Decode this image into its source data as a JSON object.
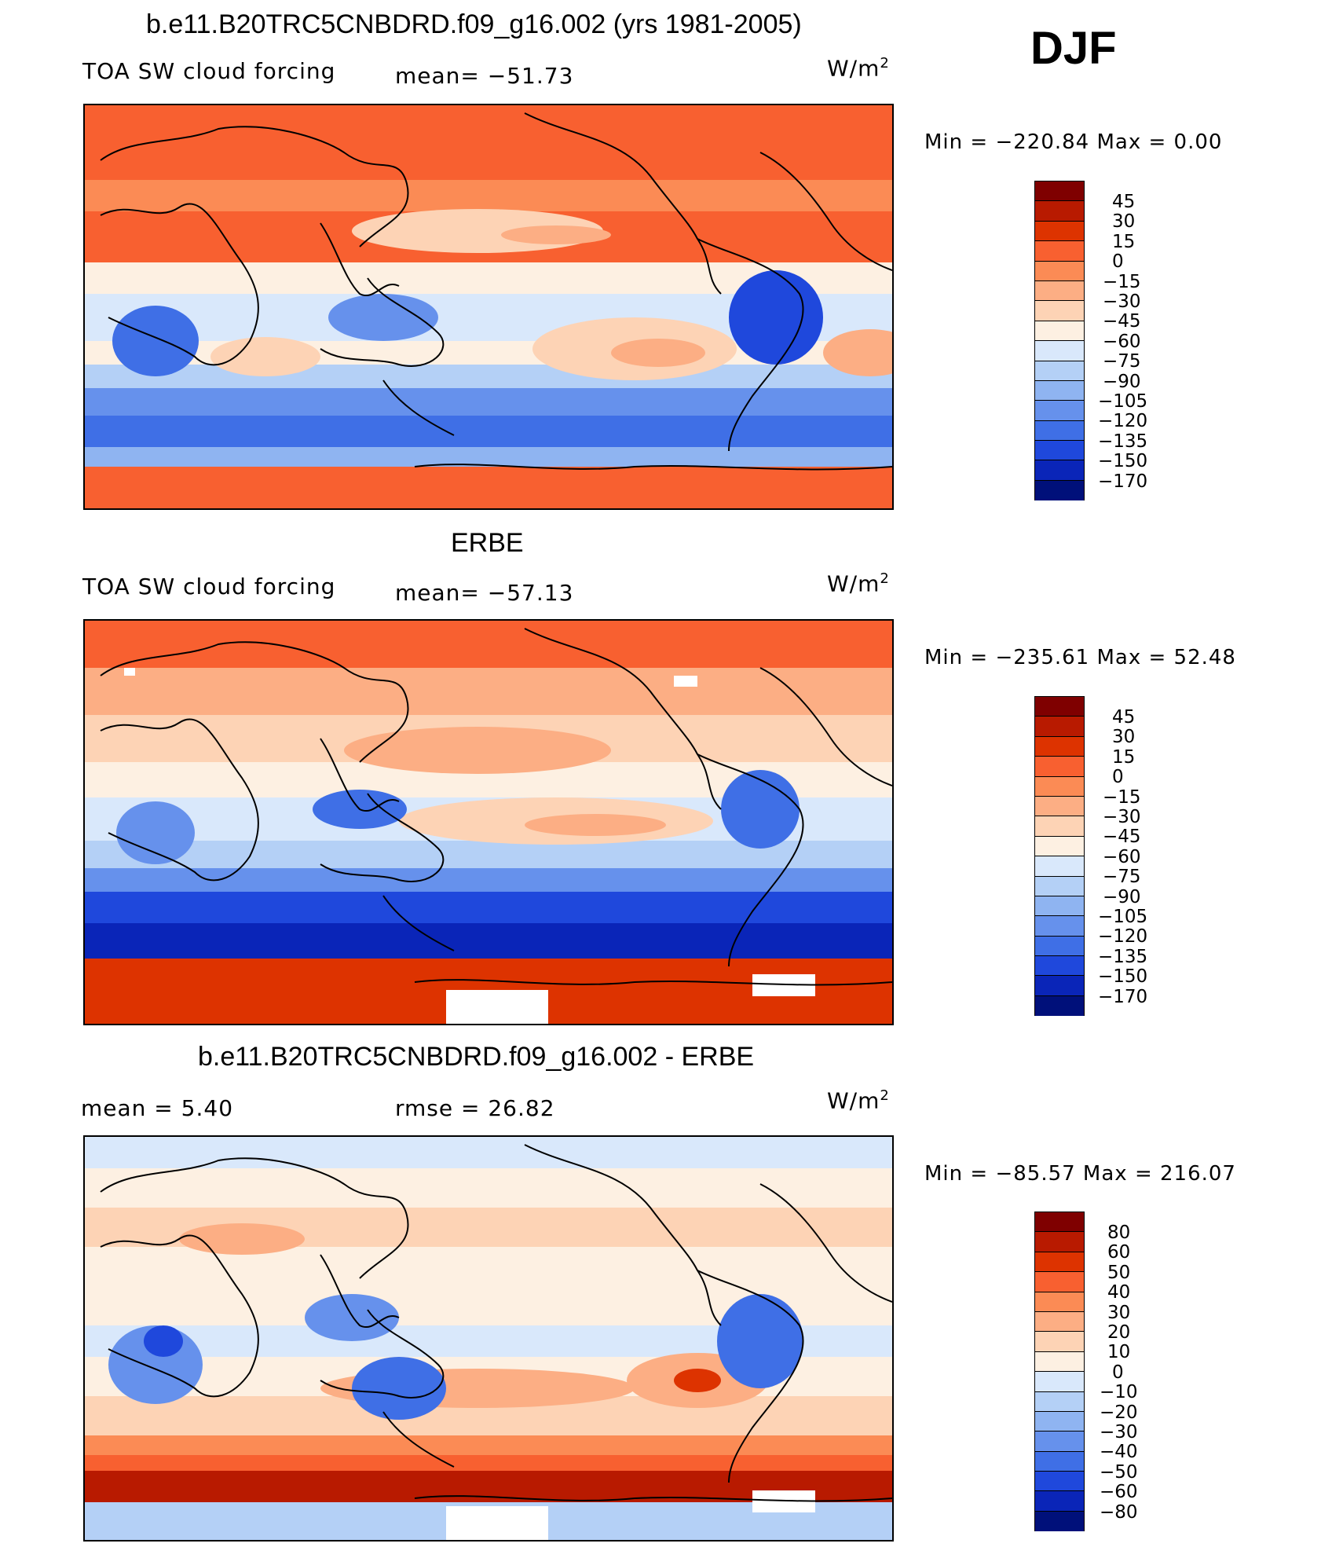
{
  "season": "DJF",
  "panels": [
    {
      "title": "b.e11.B20TRC5CNBDRD.f09_g16.002 (yrs 1981-2005)",
      "variable": "TOA SW cloud forcing",
      "stat1": "mean=  −51.73",
      "stat2": "",
      "unit": "W/m",
      "unit_sup": "2",
      "minmax": "Min  =  −220.84  Max  =     0.00",
      "ticks": [
        "45",
        "30",
        "15",
        "0",
        "−15",
        "−30",
        "−45",
        "−60",
        "−75",
        "−90",
        "−105",
        "−120",
        "−135",
        "−150",
        "−170"
      ],
      "colors": [
        "#7f0000",
        "#b81a00",
        "#dd3300",
        "#f86030",
        "#fb8b55",
        "#fcae84",
        "#fdd3b5",
        "#fdf0e2",
        "#d9e8fb",
        "#b4d0f6",
        "#8fb4f1",
        "#6691ec",
        "#3f6fe6",
        "#1f48dc",
        "#0a25b8",
        "#00107a"
      ]
    },
    {
      "title": "ERBE",
      "variable": "TOA SW cloud forcing",
      "stat1": "mean=  −57.13",
      "stat2": "",
      "unit": "W/m",
      "unit_sup": "2",
      "minmax": "Min  =  −235.61  Max  =    52.48",
      "ticks": [
        "45",
        "30",
        "15",
        "0",
        "−15",
        "−30",
        "−45",
        "−60",
        "−75",
        "−90",
        "−105",
        "−120",
        "−135",
        "−150",
        "−170"
      ],
      "colors": [
        "#7f0000",
        "#b81a00",
        "#dd3300",
        "#f86030",
        "#fb8b55",
        "#fcae84",
        "#fdd3b5",
        "#fdf0e2",
        "#d9e8fb",
        "#b4d0f6",
        "#8fb4f1",
        "#6691ec",
        "#3f6fe6",
        "#1f48dc",
        "#0a25b8",
        "#00107a"
      ]
    },
    {
      "title": "b.e11.B20TRC5CNBDRD.f09_g16.002 - ERBE",
      "variable": "",
      "stat1": "mean  =      5.40",
      "stat2": "rmse  =    26.82",
      "unit": "W/m",
      "unit_sup": "2",
      "minmax": "Min  =  −85.57  Max  =  216.07",
      "ticks": [
        "80",
        "60",
        "50",
        "40",
        "30",
        "20",
        "10",
        "0",
        "−10",
        "−20",
        "−30",
        "−40",
        "−50",
        "−60",
        "−80"
      ],
      "colors": [
        "#7f0000",
        "#b81a00",
        "#dd3300",
        "#f86030",
        "#fb8b55",
        "#fcae84",
        "#fdd3b5",
        "#fdf0e2",
        "#d9e8fb",
        "#b4d0f6",
        "#8fb4f1",
        "#6691ec",
        "#3f6fe6",
        "#1f48dc",
        "#0a25b8",
        "#00107a"
      ]
    }
  ]
}
